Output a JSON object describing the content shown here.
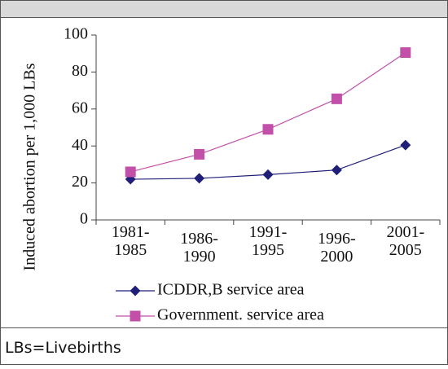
{
  "chart_data": {
    "type": "line",
    "ylabel": "Induced abortion per 1,000 LBs",
    "categories": [
      "1981-1985",
      "1986-1990",
      "1991-1995",
      "1996-2000",
      "2001-2005"
    ],
    "series": [
      {
        "name": "ICDDR,B service area",
        "color": "#1f1f7a",
        "marker": "diamond",
        "values": [
          22,
          22.5,
          24.5,
          27,
          40.5
        ]
      },
      {
        "name": "Government. service area",
        "color": "#c24fa8",
        "marker": "square",
        "values": [
          26,
          35.5,
          49,
          65.5,
          90.5
        ]
      }
    ],
    "ylim": [
      0,
      100
    ],
    "yticks": [
      0,
      20,
      40,
      60,
      80,
      100
    ],
    "footnote": "LBs=Livebirths"
  }
}
